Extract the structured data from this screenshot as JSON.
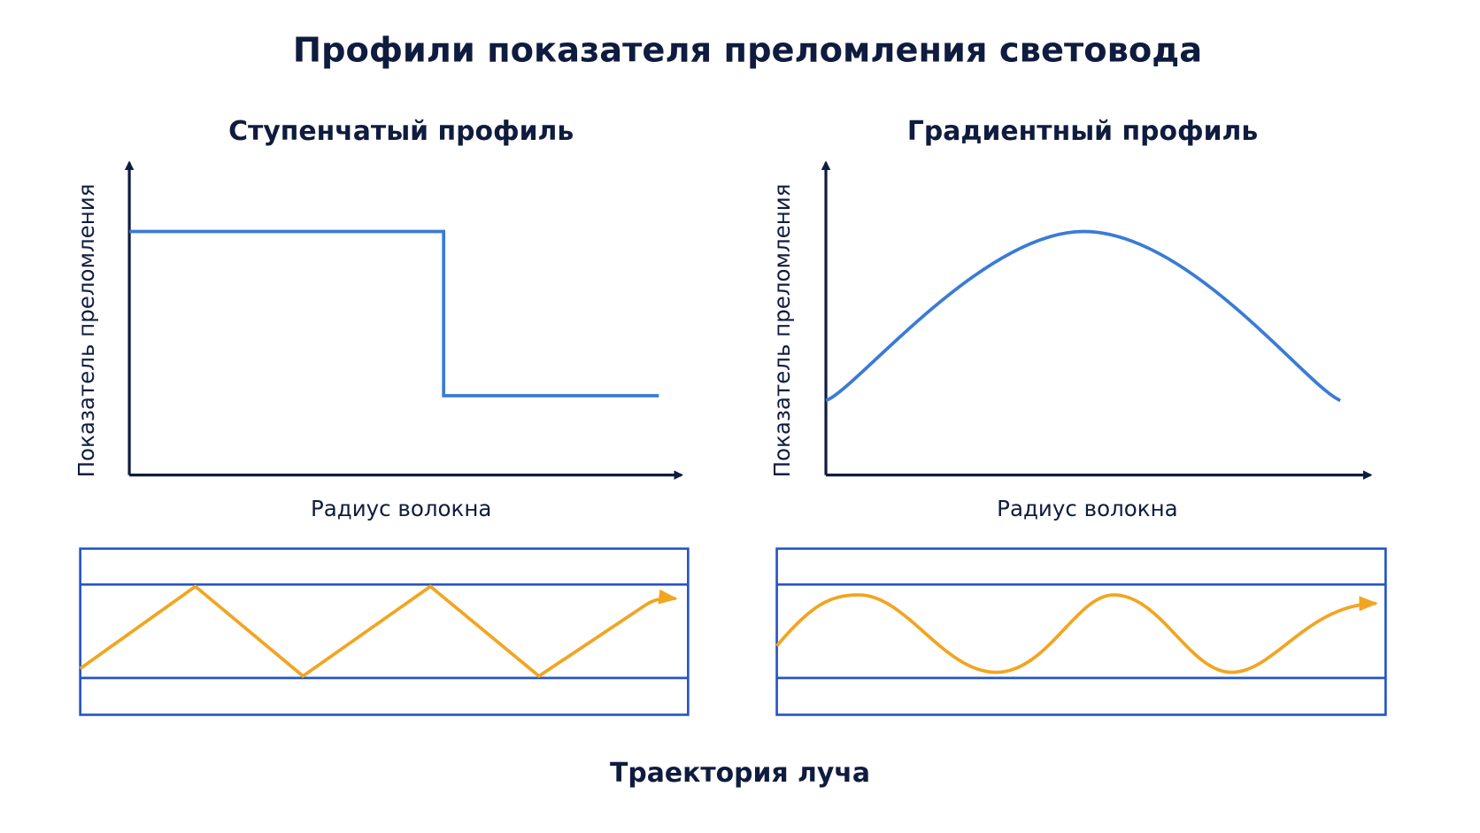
{
  "title": "Профили показателя преломления световода",
  "panels": [
    {
      "title": "Ступенчатый профиль",
      "y_label": "Показатель преломления",
      "x_label": "Радиус волокна"
    },
    {
      "title": "Градиентный профиль",
      "y_label": "Показатель преломления",
      "x_label": "Радиус волокна"
    }
  ],
  "footer": "Траектория луча"
}
